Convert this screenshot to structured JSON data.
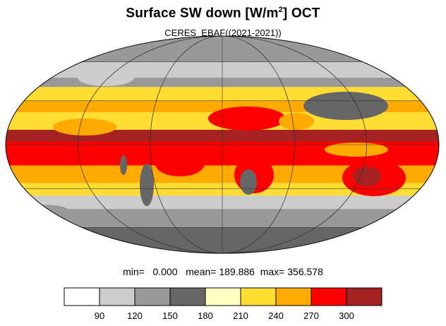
{
  "title": {
    "main": "Surface SW down [W/m",
    "superscript": "2",
    "after": "]  OCT"
  },
  "subtitle": "CERES_EBAF((2021-2021))",
  "stats": {
    "min_label": "min=",
    "min_value": "0.000",
    "mean_label": "mean=",
    "mean_value": "189.886",
    "max_label": "max=",
    "max_value": "356.578"
  },
  "colorbar": {
    "colors": [
      "#ffffff",
      "#cccccc",
      "#999999",
      "#666666",
      "#ffffc0",
      "#ffdd33",
      "#ffaa00",
      "#ff0000",
      "#a52222"
    ],
    "labels": [
      "90",
      "120",
      "150",
      "180",
      "210",
      "240",
      "270",
      "300"
    ]
  },
  "map": {
    "projection": "Mollweide",
    "bands": [
      {
        "from_lat": 90,
        "to_lat": 60,
        "level": "#999999"
      },
      {
        "from_lat": 60,
        "to_lat": 47,
        "level": "#cccccc"
      },
      {
        "from_lat": 47,
        "to_lat": 40,
        "level": "#999999"
      },
      {
        "from_lat": 40,
        "to_lat": 30,
        "level": "#ffdd33"
      },
      {
        "from_lat": 30,
        "to_lat": 22,
        "level": "#ffaa00"
      },
      {
        "from_lat": 22,
        "to_lat": 10,
        "level": "#ffdd33"
      },
      {
        "from_lat": 10,
        "to_lat": 2,
        "level": "#a52222"
      },
      {
        "from_lat": 2,
        "to_lat": -14,
        "level": "#ff0000"
      },
      {
        "from_lat": -14,
        "to_lat": -26,
        "level": "#ffaa00"
      },
      {
        "from_lat": -26,
        "to_lat": -35,
        "level": "#ffdd33"
      },
      {
        "from_lat": -35,
        "to_lat": -45,
        "level": "#cccccc"
      },
      {
        "from_lat": -45,
        "to_lat": -60,
        "level": "#999999"
      },
      {
        "from_lat": -60,
        "to_lat": -90,
        "level": "#666666"
      }
    ]
  }
}
